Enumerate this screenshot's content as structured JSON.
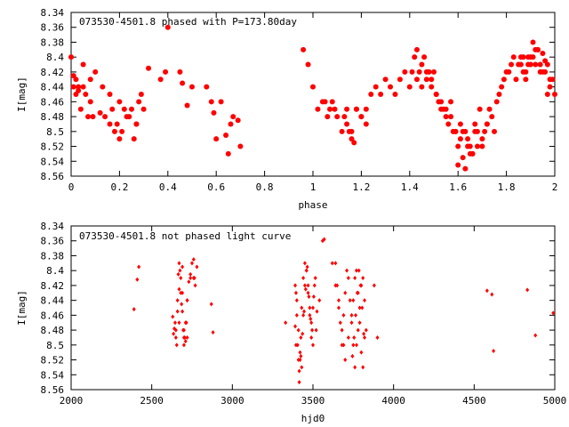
{
  "chart_data": [
    {
      "type": "scatter",
      "title": "073530-4501.8 phased with P=173.80day",
      "xlabel": "phase",
      "ylabel": "I[mag]",
      "xlim": [
        0,
        2
      ],
      "ylim": [
        8.56,
        8.34
      ],
      "y_inverted": true,
      "grid": false,
      "marker": "filled-circle",
      "color": "#ff0000",
      "xticks": [
        "0",
        "0.2",
        "0.4",
        "0.6",
        "0.8",
        "1",
        "1.2",
        "1.4",
        "1.6",
        "1.8",
        "2"
      ],
      "yticks": [
        "8.34",
        "8.36",
        "8.38",
        "8.4",
        "8.42",
        "8.44",
        "8.46",
        "8.48",
        "8.5",
        "8.52",
        "8.54",
        "8.56"
      ],
      "series": [
        {
          "x": [
            0.0,
            0.01,
            0.02,
            0.03,
            0.04,
            0.05,
            0.06,
            0.07,
            0.08,
            0.09,
            0.1,
            0.14,
            0.16,
            0.18,
            0.2,
            0.22,
            0.24,
            0.26,
            0.28,
            0.3,
            0.32,
            0.37,
            0.4,
            0.45,
            0.5,
            0.56,
            0.58,
            0.6,
            0.62,
            0.65,
            0.67,
            0.7,
            0.16,
            0.17,
            0.19,
            0.21,
            0.23,
            0.25,
            0.27,
            0.29,
            0.02,
            0.05,
            0.08,
            0.13,
            0.46,
            0.48,
            0.59,
            0.64,
            0.66,
            0.69,
            0.2,
            0.12,
            0.27,
            0.03,
            0.01,
            0.39,
            0.96,
            0.98,
            1.0,
            1.02,
            1.04,
            1.06,
            1.08,
            1.1,
            1.12,
            1.14,
            1.16,
            1.18,
            1.2,
            1.22,
            1.24,
            1.26,
            1.28,
            1.3,
            1.32,
            1.34,
            1.36,
            1.38,
            1.4,
            1.42,
            1.44,
            1.46,
            1.48,
            1.5,
            1.52,
            1.54,
            1.56,
            1.58,
            1.6,
            1.62,
            1.64,
            1.66,
            1.68,
            1.7,
            1.72,
            1.74,
            1.76,
            1.78,
            1.8,
            1.82,
            1.84,
            1.86,
            1.88,
            1.9,
            1.92,
            1.94,
            1.96,
            1.98,
            2.0,
            1.41,
            1.43,
            1.45,
            1.47,
            1.49,
            1.51,
            1.53,
            1.55,
            1.57,
            1.59,
            1.61,
            1.63,
            1.65,
            1.67,
            1.69,
            1.71,
            1.73,
            1.75,
            1.77,
            1.79,
            1.81,
            1.83,
            1.85,
            1.87,
            1.89,
            1.91,
            1.93,
            1.95,
            1.97,
            1.99,
            1.6,
            1.62,
            1.64,
            1.66,
            1.68,
            1.7,
            1.72,
            1.63,
            1.65,
            1.67,
            1.61,
            1.59,
            1.57,
            1.55,
            1.53,
            1.51,
            1.49,
            1.47,
            1.45,
            1.43,
            1.91,
            1.92,
            1.93,
            1.94,
            1.9,
            1.89,
            1.88,
            1.87,
            1.86,
            1.95,
            1.96,
            1.97,
            1.98,
            1.14,
            1.16,
            1.18,
            1.2,
            1.22,
            1.13,
            1.15,
            1.17,
            1.07,
            1.09,
            1.05
          ],
          "y": [
            8.4,
            8.44,
            8.45,
            8.44,
            8.47,
            8.44,
            8.45,
            8.48,
            8.43,
            8.48,
            8.42,
            8.48,
            8.49,
            8.5,
            8.51,
            8.47,
            8.48,
            8.51,
            8.46,
            8.47,
            8.415,
            8.43,
            8.36,
            8.42,
            8.44,
            8.44,
            8.46,
            8.51,
            8.46,
            8.53,
            8.48,
            8.52,
            8.45,
            8.47,
            8.49,
            8.5,
            8.48,
            8.47,
            8.49,
            8.45,
            8.43,
            8.41,
            8.46,
            8.44,
            8.435,
            8.465,
            8.475,
            8.505,
            8.49,
            8.485,
            8.46,
            8.475,
            8.49,
            8.445,
            8.425,
            8.42,
            8.39,
            8.41,
            8.44,
            8.47,
            8.46,
            8.48,
            8.46,
            8.48,
            8.5,
            8.49,
            8.51,
            8.47,
            8.48,
            8.47,
            8.45,
            8.44,
            8.45,
            8.43,
            8.44,
            8.45,
            8.43,
            8.42,
            8.44,
            8.4,
            8.42,
            8.4,
            8.42,
            8.42,
            8.46,
            8.47,
            8.49,
            8.5,
            8.52,
            8.5,
            8.51,
            8.53,
            8.52,
            8.51,
            8.49,
            8.48,
            8.46,
            8.44,
            8.42,
            8.41,
            8.43,
            8.4,
            8.42,
            8.4,
            8.39,
            8.41,
            8.42,
            8.44,
            8.45,
            8.42,
            8.39,
            8.41,
            8.43,
            8.43,
            8.45,
            8.47,
            8.48,
            8.46,
            8.5,
            8.51,
            8.5,
            8.52,
            8.49,
            8.47,
            8.5,
            8.47,
            8.5,
            8.45,
            8.43,
            8.42,
            8.4,
            8.41,
            8.4,
            8.41,
            8.38,
            8.39,
            8.42,
            8.45,
            8.43,
            8.545,
            8.535,
            8.52,
            8.53,
            8.5,
            8.52,
            8.49,
            8.55,
            8.53,
            8.5,
            8.49,
            8.5,
            8.48,
            8.47,
            8.46,
            8.45,
            8.44,
            8.42,
            8.44,
            8.43,
            8.4,
            8.41,
            8.39,
            8.42,
            8.41,
            8.4,
            8.43,
            8.42,
            8.41,
            8.395,
            8.405,
            8.41,
            8.43,
            8.47,
            8.5,
            8.47,
            8.48,
            8.49,
            8.48,
            8.5,
            8.515,
            8.47,
            8.47,
            8.46
          ]
        }
      ]
    },
    {
      "type": "scatter",
      "title": "073530-4501.8 not phased light curve",
      "xlabel": "hjd0",
      "ylabel": "I[mag]",
      "xlim": [
        2000,
        5000
      ],
      "ylim": [
        8.56,
        8.34
      ],
      "y_inverted": true,
      "grid": false,
      "marker": "small-diamond",
      "color": "#ff0000",
      "xticks": [
        "2000",
        "2500",
        "3000",
        "3500",
        "4000",
        "4500",
        "5000"
      ],
      "yticks": [
        "8.34",
        "8.36",
        "8.38",
        "8.4",
        "8.42",
        "8.44",
        "8.46",
        "8.48",
        "8.5",
        "8.52",
        "8.54",
        "8.56"
      ],
      "series": [
        {
          "x": [
            2390,
            2410,
            2420,
            2630,
            2635,
            2640,
            2645,
            2650,
            2655,
            2660,
            2665,
            2670,
            2675,
            2680,
            2685,
            2690,
            2695,
            2700,
            2705,
            2710,
            2715,
            2720,
            2730,
            2740,
            2750,
            2760,
            2765,
            2770,
            2870,
            2880,
            3330,
            3390,
            3395,
            3400,
            3405,
            3410,
            3415,
            3420,
            3425,
            3430,
            3440,
            3450,
            3460,
            3470,
            3480,
            3490,
            3500,
            3520,
            3540,
            3560,
            3620,
            3640,
            3660,
            3680,
            3690,
            3700,
            3720,
            3740,
            3750,
            3760,
            3770,
            3780,
            3790,
            3800,
            3810,
            3820,
            3880,
            3900,
            3400,
            3410,
            3420,
            3430,
            3440,
            3450,
            3460,
            3470,
            3480,
            3490,
            3500,
            3510,
            3390,
            3395,
            3415,
            3425,
            3435,
            3445,
            3455,
            3465,
            3475,
            3485,
            3495,
            3505,
            3515,
            3525,
            3640,
            3650,
            3660,
            3670,
            3680,
            3690,
            3700,
            3710,
            3720,
            3730,
            3740,
            3750,
            3760,
            3770,
            3780,
            3790,
            3800,
            3810,
            3820,
            3830,
            3745,
            3755,
            3765,
            3775,
            3785,
            3795,
            3805,
            3815,
            2650,
            2660,
            2670,
            2680,
            2690,
            2700,
            2710,
            2720,
            2670,
            2690,
            2700,
            2720,
            2740,
            2760,
            2780,
            3570,
            4580,
            4610,
            4620,
            4830,
            4880,
            4990
          ],
          "y": [
            8.452,
            8.412,
            8.395,
            8.462,
            8.485,
            8.478,
            8.47,
            8.49,
            8.5,
            8.44,
            8.405,
            8.39,
            8.4,
            8.43,
            8.445,
            8.455,
            8.48,
            8.5,
            8.49,
            8.495,
            8.47,
            8.44,
            8.415,
            8.405,
            8.39,
            8.385,
            8.41,
            8.42,
            8.445,
            8.483,
            8.47,
            8.42,
            8.43,
            8.46,
            8.5,
            8.52,
            8.55,
            8.52,
            8.49,
            8.45,
            8.41,
            8.39,
            8.4,
            8.42,
            8.45,
            8.47,
            8.5,
            8.48,
            8.44,
            8.36,
            8.39,
            8.42,
            8.45,
            8.48,
            8.5,
            8.52,
            8.49,
            8.46,
            8.44,
            8.41,
            8.4,
            8.43,
            8.47,
            8.51,
            8.53,
            8.49,
            8.42,
            8.49,
            8.44,
            8.48,
            8.51,
            8.53,
            8.46,
            8.42,
            8.4,
            8.43,
            8.46,
            8.49,
            8.45,
            8.42,
            8.475,
            8.5,
            8.535,
            8.515,
            8.485,
            8.455,
            8.425,
            8.395,
            8.435,
            8.465,
            8.48,
            8.435,
            8.41,
            8.455,
            8.39,
            8.42,
            8.44,
            8.47,
            8.5,
            8.46,
            8.43,
            8.4,
            8.41,
            8.44,
            8.47,
            8.5,
            8.53,
            8.5,
            8.48,
            8.45,
            8.42,
            8.41,
            8.44,
            8.48,
            8.515,
            8.49,
            8.46,
            8.43,
            8.4,
            8.42,
            8.45,
            8.485,
            8.48,
            8.455,
            8.425,
            8.41,
            8.395,
            8.49,
            8.47,
            8.44,
            8.47,
            8.43,
            8.48,
            8.49,
            8.41,
            8.41,
            8.395,
            8.358,
            8.427,
            8.432,
            8.508,
            8.426,
            8.487,
            8.457
          ]
        }
      ]
    }
  ]
}
